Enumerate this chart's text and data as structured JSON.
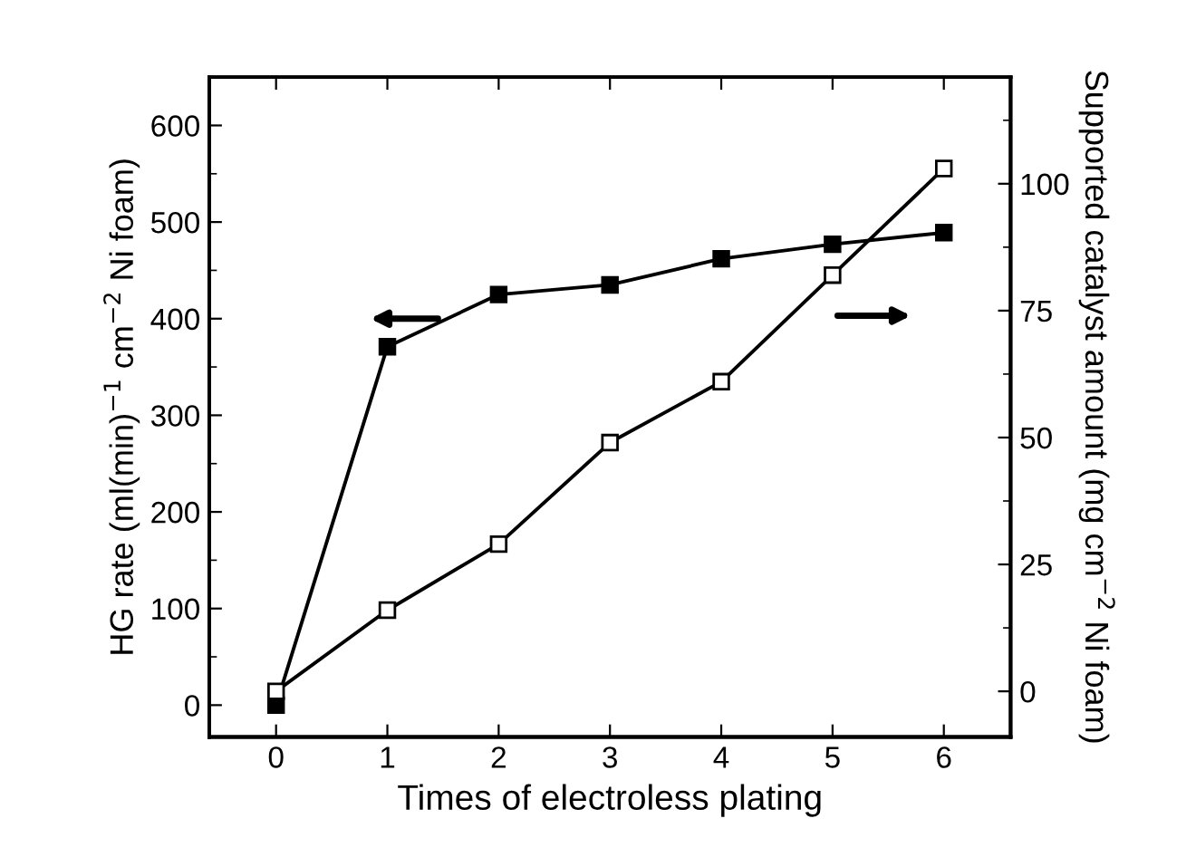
{
  "chart_data": {
    "type": "line",
    "xlabel": "Times of electroless plating",
    "ylabel": "HG rate (ml(min)$^{−1}$ cm$^{−2}$ Ni foam)",
    "y2label": "Supported catalyst amount (mg cm$^{−2}$ Ni foam)",
    "x": [
      0,
      1,
      2,
      3,
      4,
      5,
      6
    ],
    "series": [
      {
        "color": "#000000",
        "values": [
          0,
          371,
          425,
          435,
          462,
          477,
          489
        ],
        "marker": "square"
      },
      {
        "color": "#000000",
        "values": [
          0,
          16,
          29,
          49,
          61,
          82,
          103
        ],
        "marker": "square",
        "axis": "y2"
      }
    ],
    "xlim": [
      -0.6,
      6.6
    ],
    "xticks": [
      0,
      1,
      2,
      3,
      4,
      5,
      6
    ],
    "ylim": [
      -33,
      650
    ],
    "yticks": [
      0,
      100,
      200,
      300,
      400,
      500,
      600
    ],
    "y2lim": [
      -9,
      121
    ],
    "y2ticks": [
      0,
      25,
      50,
      75,
      100
    ],
    "grid": false,
    "legend": false,
    "line_style": "solid"
  }
}
